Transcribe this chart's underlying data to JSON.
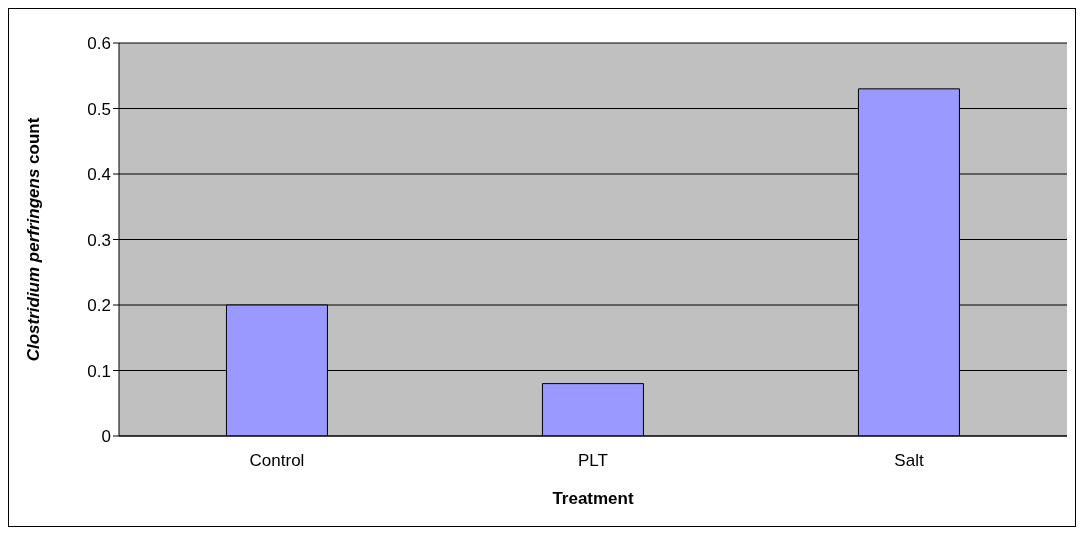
{
  "chart_data": {
    "type": "bar",
    "xlabel": "Treatment",
    "ylabel": "Clostridium perfringens count",
    "categories": [
      "Control",
      "PLT",
      "Salt"
    ],
    "values": [
      0.2,
      0.08,
      0.53
    ],
    "color": "#9999ff",
    "ylim": [
      0,
      0.6
    ],
    "yticks": [
      0,
      0.1,
      0.2,
      0.3,
      0.4,
      0.5,
      0.6
    ],
    "grid": "y",
    "legend": false
  }
}
